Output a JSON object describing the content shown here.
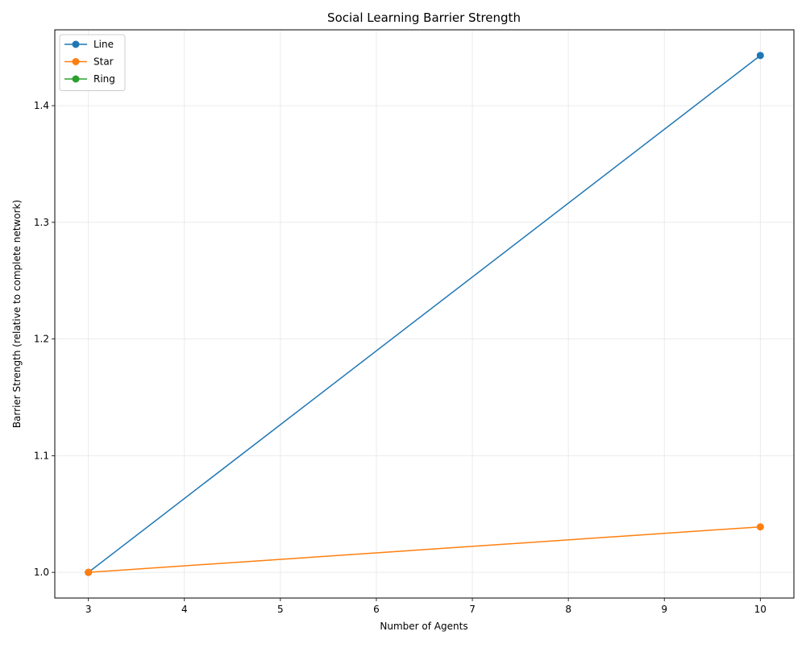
{
  "chart_data": {
    "type": "line",
    "title": "Social Learning Barrier Strength",
    "xlabel": "Number of Agents",
    "ylabel": "Barrier Strength (relative to complete network)",
    "xlim": [
      2.65,
      10.35
    ],
    "ylim": [
      0.978,
      1.465
    ],
    "xticks": [
      3,
      4,
      5,
      6,
      7,
      8,
      9,
      10
    ],
    "yticks": [
      1.0,
      1.1,
      1.2,
      1.3,
      1.4
    ],
    "ytick_labels": [
      "1.0",
      "1.1",
      "1.2",
      "1.3",
      "1.4"
    ],
    "grid": true,
    "legend_position": "upper-left",
    "series": [
      {
        "name": "Line",
        "color": "#1f77b4",
        "x": [
          3,
          10
        ],
        "y": [
          1.0,
          1.443
        ]
      },
      {
        "name": "Star",
        "color": "#ff7f0e",
        "x": [
          3,
          10
        ],
        "y": [
          1.0,
          1.039
        ]
      },
      {
        "name": "Ring",
        "color": "#2ca02c",
        "x": [],
        "y": []
      }
    ]
  }
}
